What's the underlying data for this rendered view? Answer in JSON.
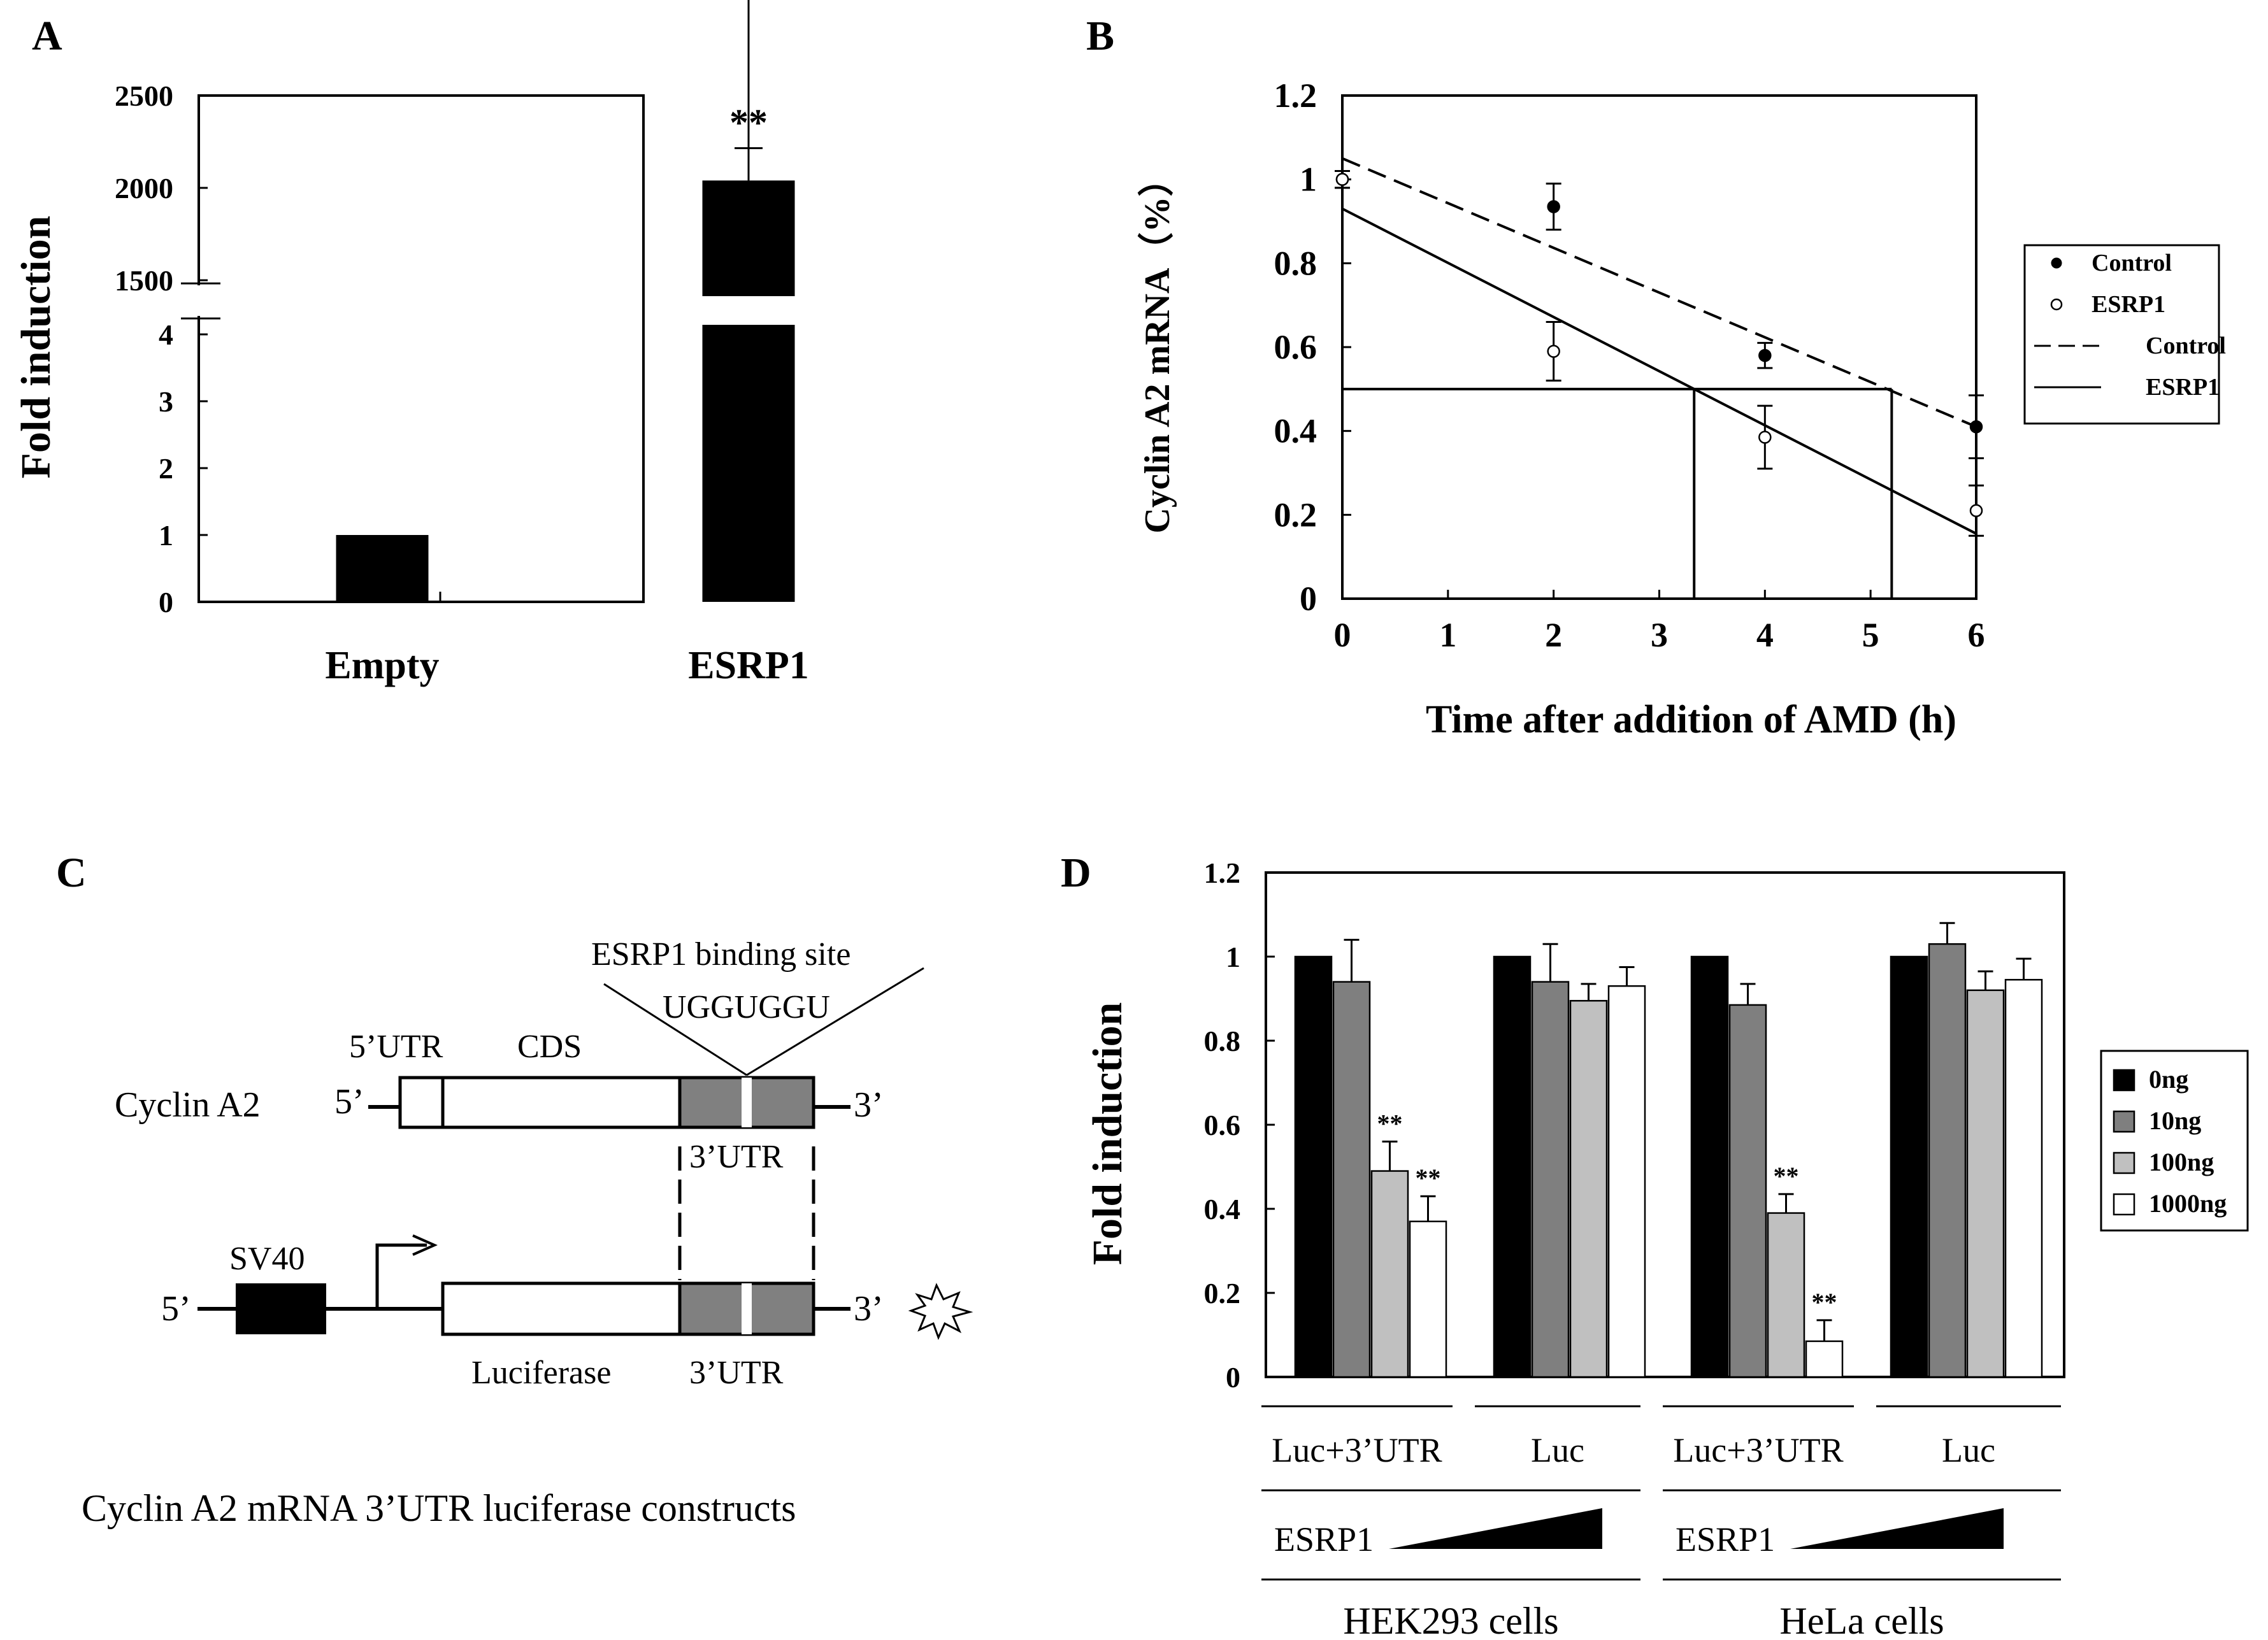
{
  "panels": {
    "a": "A",
    "b": "B",
    "c": "C",
    "d": "D"
  },
  "chart_data": [
    {
      "id": "A",
      "type": "bar",
      "categories": [
        "Empty",
        "ESRP1"
      ],
      "values": [
        1,
        2040
      ],
      "errors": [
        0,
        175
      ],
      "significance": [
        "",
        "**"
      ],
      "ylabel": "Fold induction",
      "axis_break": true,
      "lower_segment": {
        "ylim": [
          0,
          4
        ],
        "ticks": [
          "0",
          "1",
          "2",
          "3",
          "4"
        ]
      },
      "upper_segment": {
        "ylim": [
          1500,
          2500
        ],
        "ticks": [
          "1500",
          "2000",
          "2500"
        ]
      }
    },
    {
      "id": "B",
      "type": "scatter",
      "xlabel": "Time after addition of  AMD (h)",
      "ylabel": "Cyclin A2 mRNA（%）",
      "xlim": [
        0,
        6
      ],
      "ylim": [
        0,
        1.2
      ],
      "xticks": [
        "0",
        "1",
        "2",
        "3",
        "4",
        "5",
        "6"
      ],
      "yticks": [
        "0",
        "0.2",
        "0.4",
        "0.6",
        "0.8",
        "1",
        "1.2"
      ],
      "series": [
        {
          "name": "Control",
          "marker": "filled",
          "x": [
            0,
            2,
            4,
            6
          ],
          "y": [
            1.0,
            0.935,
            0.58,
            0.41
          ],
          "err": [
            0.02,
            0.055,
            0.03,
            0.075
          ]
        },
        {
          "name": "ESRP1",
          "marker": "open",
          "x": [
            0,
            2,
            4,
            6
          ],
          "y": [
            1.0,
            0.59,
            0.385,
            0.21
          ],
          "err": [
            0.02,
            0.07,
            0.075,
            0.06
          ]
        }
      ],
      "fit_lines": [
        {
          "name": "Control",
          "style": "dashed",
          "x": [
            0,
            6
          ],
          "y": [
            1.05,
            0.41
          ]
        },
        {
          "name": "ESRP1",
          "style": "solid",
          "x": [
            0,
            6
          ],
          "y": [
            0.93,
            0.155
          ]
        }
      ],
      "half_life_lines": {
        "y": 0.5,
        "x": [
          3.33,
          5.2
        ]
      },
      "legend": {
        "position": "right",
        "entries": [
          "Control",
          "ESRP1",
          "Control",
          "ESRP1"
        ]
      }
    },
    {
      "id": "D",
      "type": "bar",
      "ylabel": "Fold induction",
      "ylim": [
        0,
        1.2
      ],
      "yticks": [
        "0",
        "0.2",
        "0.4",
        "0.6",
        "0.8",
        "1",
        "1.2"
      ],
      "series_names": [
        "0ng",
        "10ng",
        "100ng",
        "1000ng"
      ],
      "groups": [
        {
          "label": "Luc+3'UTR",
          "values": [
            1.0,
            0.94,
            0.49,
            0.37
          ],
          "errors": [
            0,
            0.1,
            0.07,
            0.06
          ],
          "sig": [
            "",
            "",
            "**",
            "**"
          ]
        },
        {
          "label": "Luc",
          "values": [
            1.0,
            0.94,
            0.895,
            0.93
          ],
          "errors": [
            0,
            0.09,
            0.04,
            0.045
          ],
          "sig": [
            "",
            "",
            "",
            ""
          ]
        },
        {
          "label": "Luc+3'UTR",
          "values": [
            1.0,
            0.885,
            0.39,
            0.085
          ],
          "errors": [
            0,
            0.05,
            0.045,
            0.05
          ],
          "sig": [
            "",
            "",
            "**",
            "**"
          ]
        },
        {
          "label": "Luc",
          "values": [
            1.0,
            1.03,
            0.92,
            0.945
          ],
          "errors": [
            0,
            0.05,
            0.045,
            0.05
          ],
          "sig": [
            "",
            "",
            "",
            ""
          ]
        }
      ],
      "group_labels": [
        "Luc+3’UTR",
        "Luc",
        "Luc+3’UTR",
        "Luc"
      ],
      "esrp1_label": "ESRP1",
      "cell_labels": [
        "HEK293  cells",
        "HeLa cells"
      ],
      "legend": {
        "position": "right",
        "entries": [
          "0ng",
          "10ng",
          "100ng",
          "1000ng"
        ]
      }
    }
  ],
  "diagram": {
    "title": "Cyclin A2 mRNA 3’UTR luciferase constructs",
    "binding_site": "ESRP1 binding site",
    "motif": "UGGUGGU",
    "utr5": "5’UTR",
    "cds": "CDS",
    "gene": "Cyclin A2",
    "five_prime": "5’",
    "three_prime": "3’",
    "utr3": "3’UTR",
    "sv40": "SV40",
    "luciferase": "Luciferase"
  }
}
